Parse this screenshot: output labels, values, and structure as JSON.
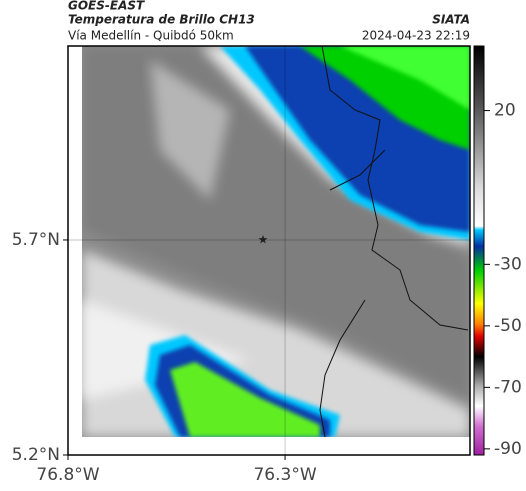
{
  "header": {
    "title": "GOES-EAST",
    "subtitle": "Temperatura de Brillo CH13",
    "source": "SIATA",
    "location": "Vía Medellín - Quibdó 50km",
    "timestamp": "2024-04-23 22:19"
  },
  "map": {
    "xlim": [
      -76.8,
      -75.874
    ],
    "ylim": [
      5.2,
      6.151
    ],
    "xticks": [
      {
        "value": -76.8,
        "label": "76.8°W"
      },
      {
        "value": -76.3,
        "label": "76.3°W"
      }
    ],
    "yticks": [
      {
        "value": 5.2,
        "label": "5.2°N"
      },
      {
        "value": 5.7,
        "label": "5.7°N"
      }
    ],
    "grid": true
  },
  "colorbar": {
    "lim": [
      -92,
      41
    ],
    "ticks": [
      20,
      -30,
      -50,
      -70,
      -90
    ]
  }
}
